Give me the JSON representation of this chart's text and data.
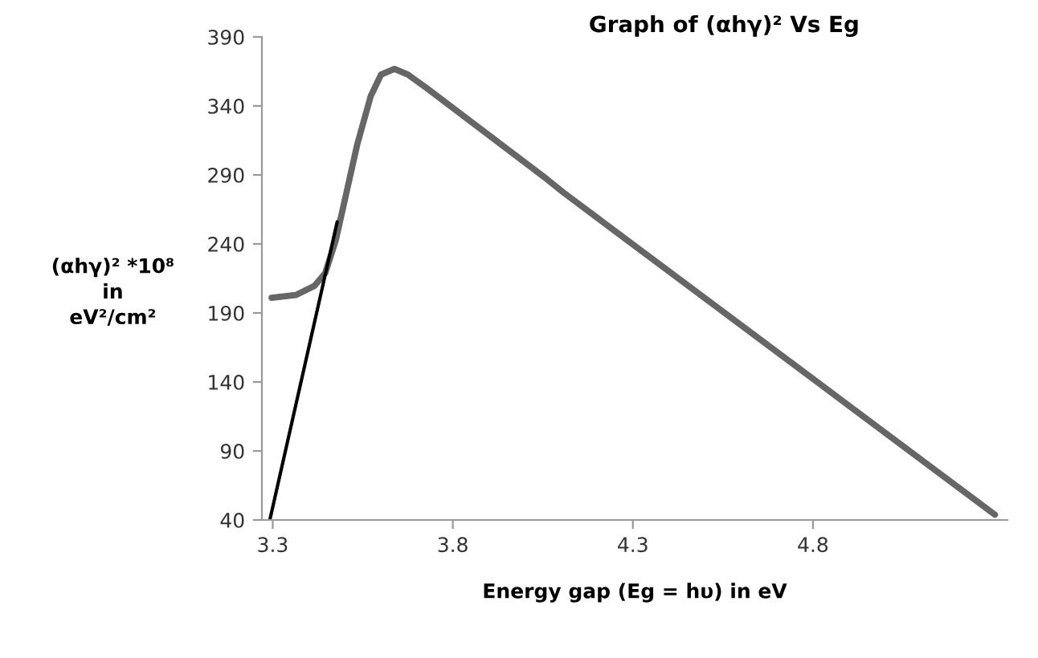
{
  "chart_data": {
    "type": "line",
    "title": "Graph of (αhγ)² Vs Eg",
    "xlabel": "Energy gap (Eg = hυ) in eV",
    "ylabel": "(αhγ)² *10⁸\nin\neV²/cm²",
    "xlim": [
      3.27,
      5.34
    ],
    "xticks": [
      3.3,
      3.8,
      4.3,
      4.8
    ],
    "ylim": [
      40,
      390
    ],
    "yticks": [
      40,
      90,
      140,
      190,
      240,
      290,
      340,
      390
    ],
    "grid": false,
    "legend": false,
    "series": [
      {
        "color": "#666666",
        "x": [
          3.297,
          3.364,
          3.416,
          3.446,
          3.475,
          3.505,
          3.535,
          3.572,
          3.601,
          3.638,
          3.675,
          3.727,
          4.061,
          4.106,
          5.305
        ],
        "values": [
          201,
          203,
          209.6,
          219,
          242.6,
          277.5,
          312.4,
          347,
          362.8,
          366.8,
          362.8,
          353,
          287,
          277.5,
          43.8
        ]
      },
      {
        "color": "#000000",
        "x": [
          3.292,
          3.479
        ],
        "values": [
          40,
          256
        ]
      }
    ]
  }
}
